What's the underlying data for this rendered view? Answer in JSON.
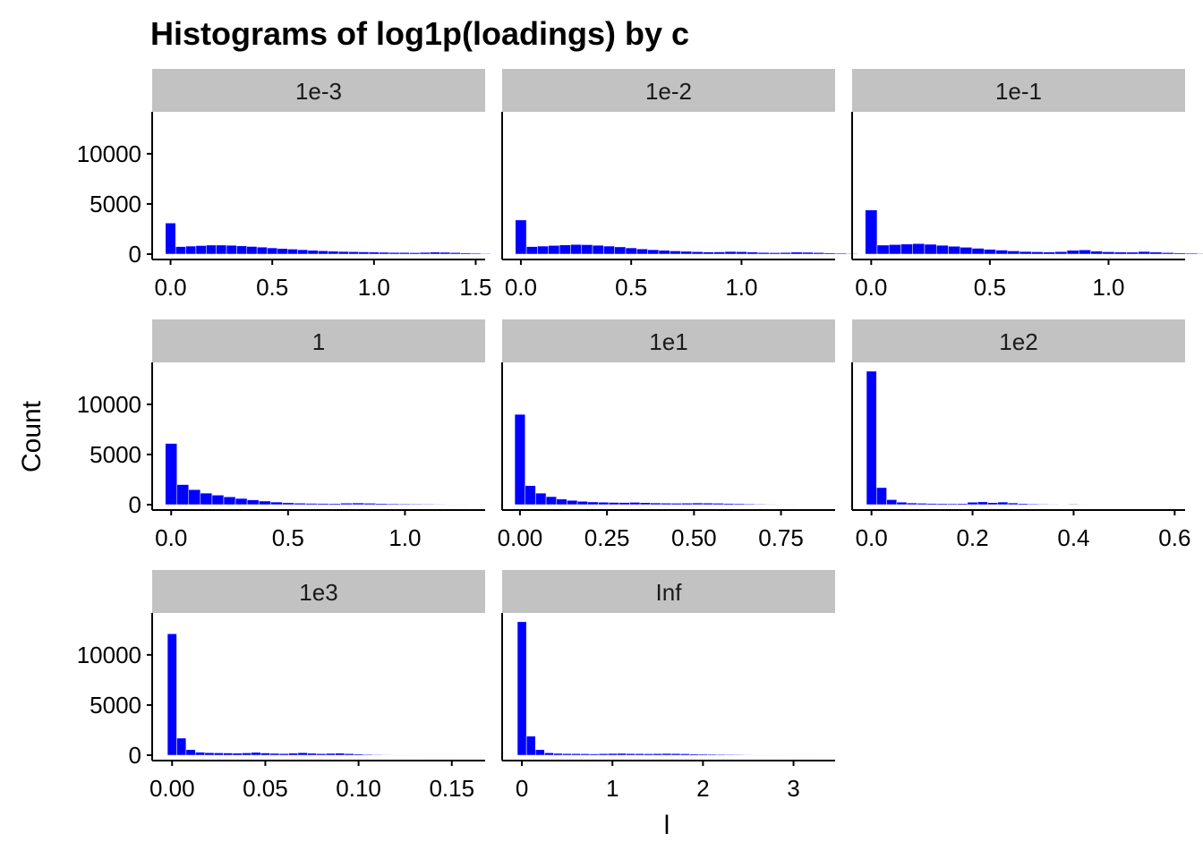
{
  "chart_data": {
    "type": "bar",
    "title": "Histograms of log1p(loadings) by c",
    "xlabel": "l",
    "ylabel": "Count",
    "ylim": [
      0,
      14000
    ],
    "y_ticks": [
      0,
      5000,
      10000
    ],
    "y_tick_labels": [
      "0",
      "5000",
      "10000"
    ],
    "bar_color": "#0000ff",
    "strip_color": "#c2c2c2",
    "panels": [
      {
        "name": "1e-3",
        "xlim": [
          -0.02,
          1.52
        ],
        "x_ticks": [
          0,
          0.5,
          1.0,
          1.5
        ],
        "x_tick_labels": [
          "0.0",
          "0.5",
          "1.0",
          "1.5"
        ],
        "bin_width": 0.05,
        "values": [
          3100,
          750,
          800,
          850,
          900,
          900,
          880,
          820,
          760,
          700,
          620,
          560,
          500,
          440,
          380,
          330,
          290,
          260,
          240,
          220,
          200,
          180,
          160,
          160,
          140,
          170,
          200,
          180,
          150,
          120,
          90,
          60,
          40,
          20,
          10
        ]
      },
      {
        "name": "1e-2",
        "xlim": [
          -0.02,
          1.4
        ],
        "x_ticks": [
          0,
          0.5,
          1.0
        ],
        "x_tick_labels": [
          "0.0",
          "0.5",
          "1.0"
        ],
        "bin_width": 0.05,
        "values": [
          3400,
          750,
          800,
          860,
          920,
          960,
          940,
          880,
          800,
          720,
          620,
          520,
          440,
          380,
          320,
          280,
          240,
          210,
          220,
          260,
          240,
          200,
          160,
          140,
          160,
          200,
          180,
          150,
          120,
          90,
          60,
          40
        ]
      },
      {
        "name": "1e-1",
        "xlim": [
          -0.02,
          1.3
        ],
        "x_ticks": [
          0,
          0.5,
          1.0
        ],
        "x_tick_labels": [
          "0.0",
          "0.5",
          "1.0"
        ],
        "bin_width": 0.05,
        "values": [
          4400,
          900,
          950,
          1000,
          1050,
          980,
          880,
          780,
          680,
          580,
          480,
          400,
          320,
          260,
          230,
          210,
          250,
          380,
          420,
          300,
          230,
          200,
          190,
          260,
          200,
          150,
          120,
          90,
          60,
          40
        ]
      },
      {
        "name": "1",
        "xlim": [
          -0.02,
          1.32
        ],
        "x_ticks": [
          0,
          0.5,
          1.0
        ],
        "x_tick_labels": [
          "0.0",
          "0.5",
          "1.0"
        ],
        "bin_width": 0.05,
        "values": [
          6100,
          2000,
          1500,
          1150,
          950,
          780,
          620,
          480,
          360,
          260,
          190,
          150,
          130,
          120,
          110,
          150,
          170,
          140,
          110,
          90,
          80,
          70,
          60,
          50,
          40,
          30,
          20,
          20,
          10
        ]
      },
      {
        "name": "1e1",
        "xlim": [
          -0.01,
          0.89
        ],
        "x_ticks": [
          0,
          0.25,
          0.5,
          0.75
        ],
        "x_tick_labels": [
          "0.00",
          "0.25",
          "0.50",
          "0.75"
        ],
        "bin_width": 0.03,
        "values": [
          9000,
          1900,
          1150,
          800,
          560,
          430,
          330,
          270,
          240,
          220,
          210,
          230,
          200,
          170,
          150,
          140,
          150,
          170,
          160,
          140,
          120,
          100,
          80,
          60,
          50,
          40,
          30,
          20
        ]
      },
      {
        "name": "1e2",
        "xlim": [
          -0.01,
          0.61
        ],
        "x_ticks": [
          0,
          0.2,
          0.4,
          0.6
        ],
        "x_tick_labels": [
          "0.0",
          "0.2",
          "0.4",
          "0.6"
        ],
        "bin_width": 0.02,
        "values": [
          13300,
          1700,
          500,
          250,
          170,
          140,
          120,
          110,
          100,
          110,
          240,
          280,
          200,
          260,
          170,
          110,
          80,
          60,
          50,
          40,
          60,
          30,
          20
        ]
      },
      {
        "name": "1e3",
        "xlim": [
          -0.003,
          0.165
        ],
        "x_ticks": [
          0,
          0.05,
          0.1,
          0.15
        ],
        "x_tick_labels": [
          "0.00",
          "0.05",
          "0.10",
          "0.15"
        ],
        "bin_width": 0.005,
        "values": [
          12100,
          1700,
          550,
          300,
          250,
          230,
          220,
          200,
          230,
          280,
          220,
          180,
          160,
          200,
          250,
          190,
          150,
          180,
          200,
          150,
          110,
          80,
          60,
          50,
          40,
          30,
          20,
          15,
          10,
          8,
          5
        ]
      },
      {
        "name": "Inf",
        "xlim": [
          -0.06,
          3.4
        ],
        "x_ticks": [
          0,
          1,
          2,
          3
        ],
        "x_tick_labels": [
          "0",
          "1",
          "2",
          "3"
        ],
        "bin_width": 0.1,
        "values": [
          13300,
          1900,
          550,
          240,
          180,
          160,
          150,
          140,
          130,
          150,
          170,
          180,
          160,
          150,
          140,
          150,
          170,
          160,
          140,
          120,
          100,
          90,
          80,
          70,
          60,
          50,
          40,
          30,
          20,
          20,
          15,
          10,
          8
        ]
      }
    ]
  }
}
